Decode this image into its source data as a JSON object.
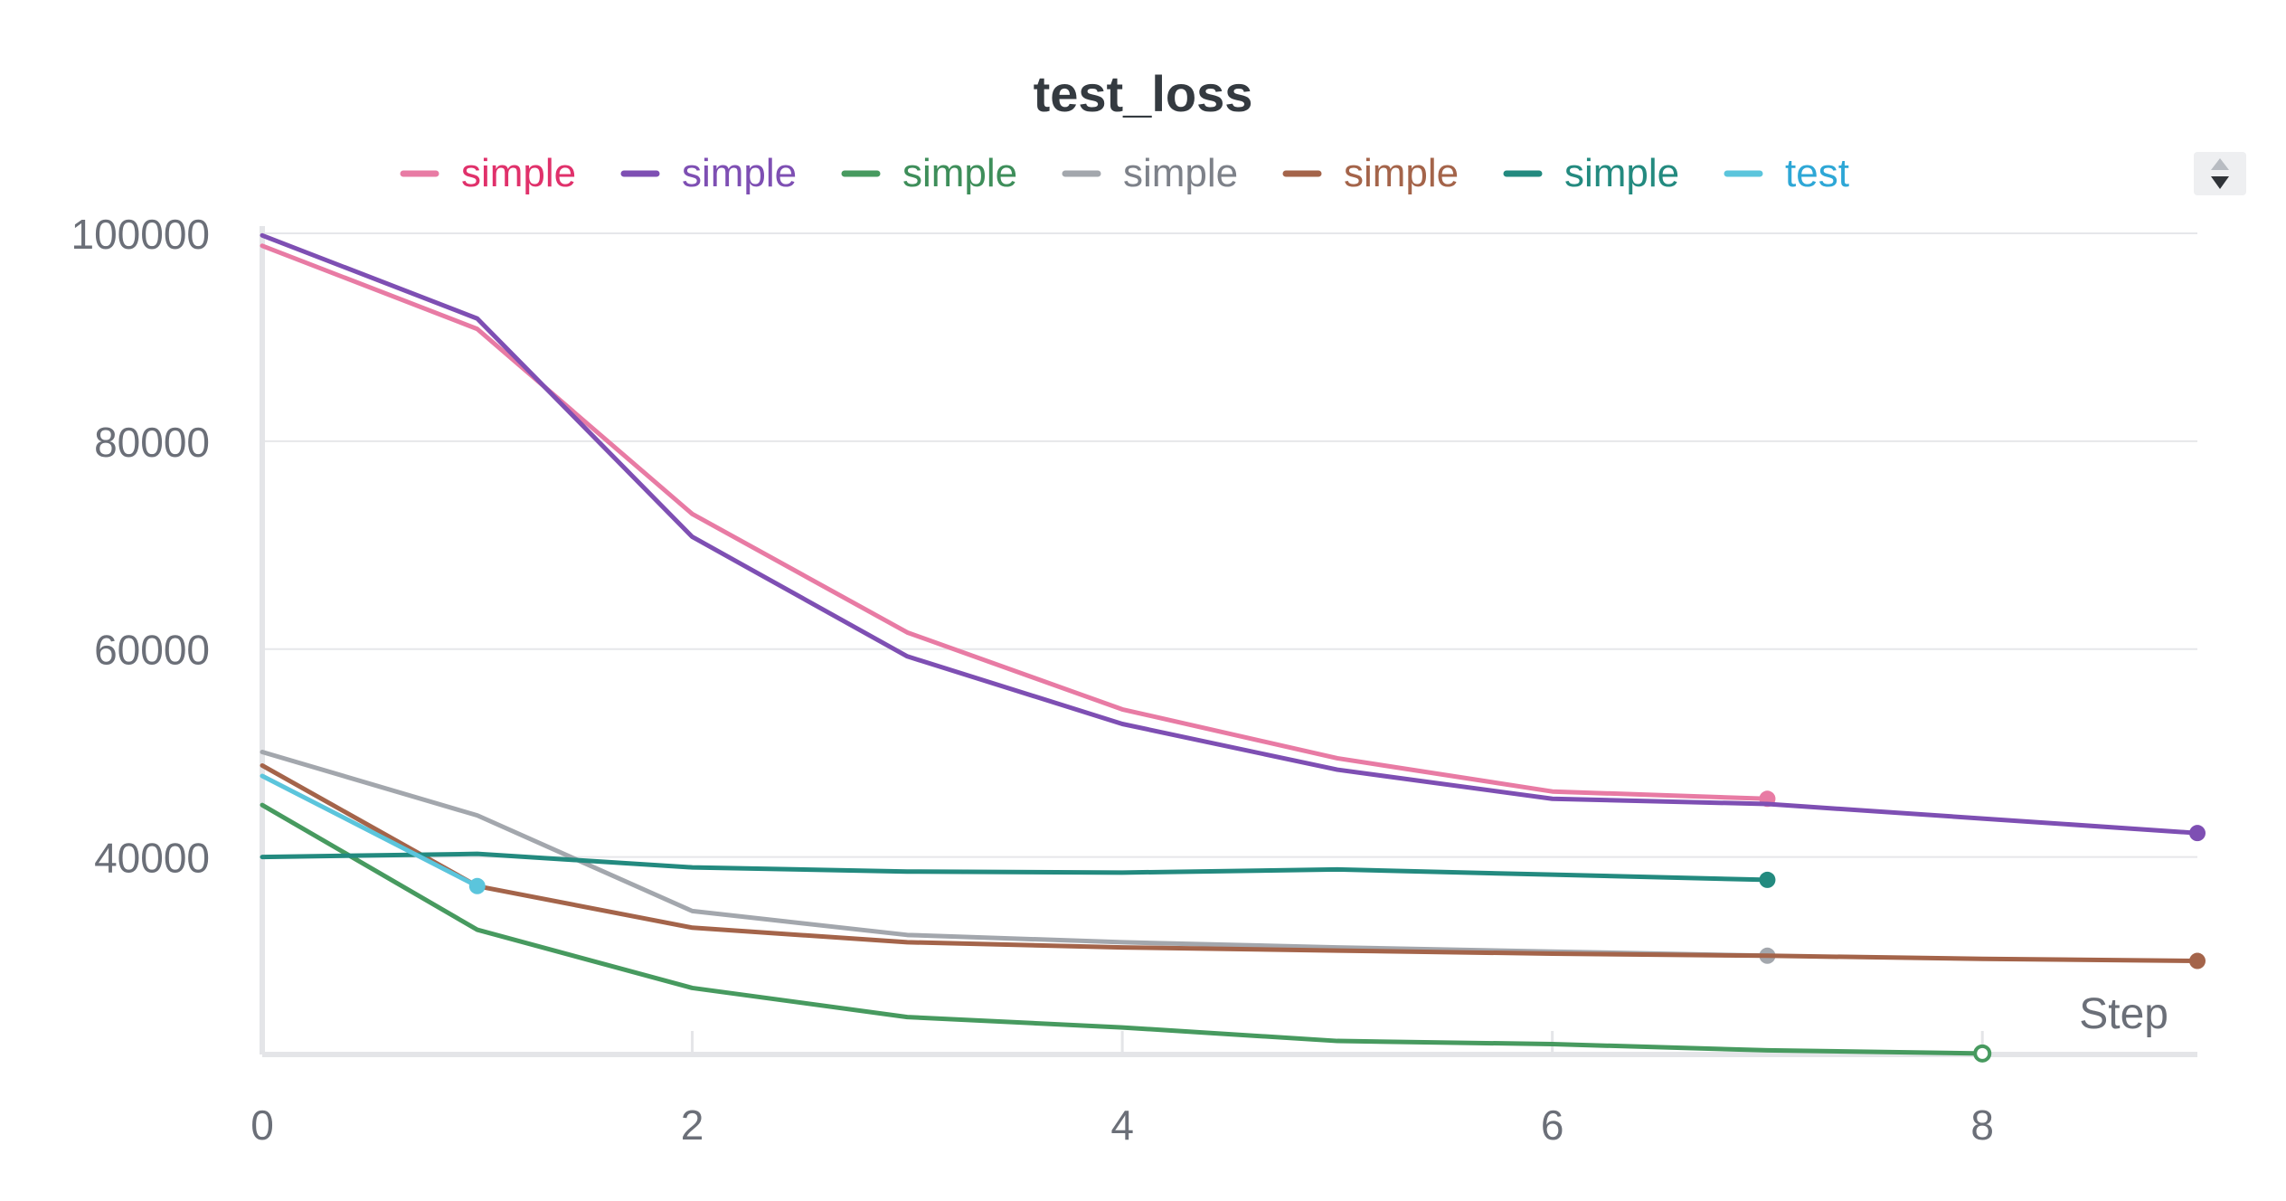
{
  "chart_data": {
    "type": "line",
    "title": "test_loss",
    "xlabel": "Step",
    "ylabel": "",
    "xlim": [
      0,
      9
    ],
    "ylim": [
      21000,
      100000
    ],
    "x_ticks": [
      "0",
      "2",
      "4",
      "6",
      "8"
    ],
    "y_ticks": [
      "40000",
      "60000",
      "80000",
      "100000"
    ],
    "grid": true,
    "legend_position": "top",
    "series": [
      {
        "name": "simple",
        "color": "#e87ba4",
        "label_color": "#e0316b",
        "x": [
          0,
          1,
          2,
          3,
          4,
          5,
          6,
          7
        ],
        "y": [
          98800,
          90800,
          73000,
          61600,
          54200,
          49500,
          46300,
          45600
        ]
      },
      {
        "name": "simple",
        "color": "#7e4fb3",
        "label_color": "#7e4fb3",
        "x": [
          0,
          1,
          2,
          3,
          4,
          5,
          6,
          7,
          8,
          9
        ],
        "y": [
          99800,
          91800,
          70800,
          59300,
          52800,
          48400,
          45600,
          45100,
          43700,
          42300
        ]
      },
      {
        "name": "simple",
        "color": "#479a5f",
        "label_color": "#3e8e5a",
        "x": [
          0,
          1,
          2,
          3,
          4,
          5,
          6,
          7,
          8
        ],
        "y": [
          45000,
          33000,
          27400,
          24600,
          23600,
          22300,
          22000,
          21400,
          21100
        ]
      },
      {
        "name": "simple",
        "color": "#a3a7ad",
        "label_color": "#7d8189",
        "x": [
          0,
          1,
          2,
          3,
          4,
          5,
          6,
          7
        ],
        "y": [
          50100,
          44000,
          34800,
          32500,
          31800,
          31300,
          30900,
          30500
        ]
      },
      {
        "name": "simple",
        "color": "#a4644a",
        "label_color": "#a4644a",
        "x": [
          0,
          1,
          2,
          3,
          4,
          5,
          6,
          7,
          8,
          9
        ],
        "y": [
          48800,
          37200,
          33200,
          31800,
          31300,
          31000,
          30700,
          30500,
          30200,
          30000
        ]
      },
      {
        "name": "simple",
        "color": "#238a7f",
        "label_color": "#238a7f",
        "x": [
          0,
          1,
          2,
          3,
          4,
          5,
          6,
          7
        ],
        "y": [
          40000,
          40300,
          39000,
          38600,
          38500,
          38800,
          38300,
          37800
        ]
      },
      {
        "name": "test",
        "color": "#5bc5dc",
        "label_color": "#2ea7d6",
        "x": [
          0,
          1
        ],
        "y": [
          47800,
          37200
        ]
      }
    ]
  }
}
